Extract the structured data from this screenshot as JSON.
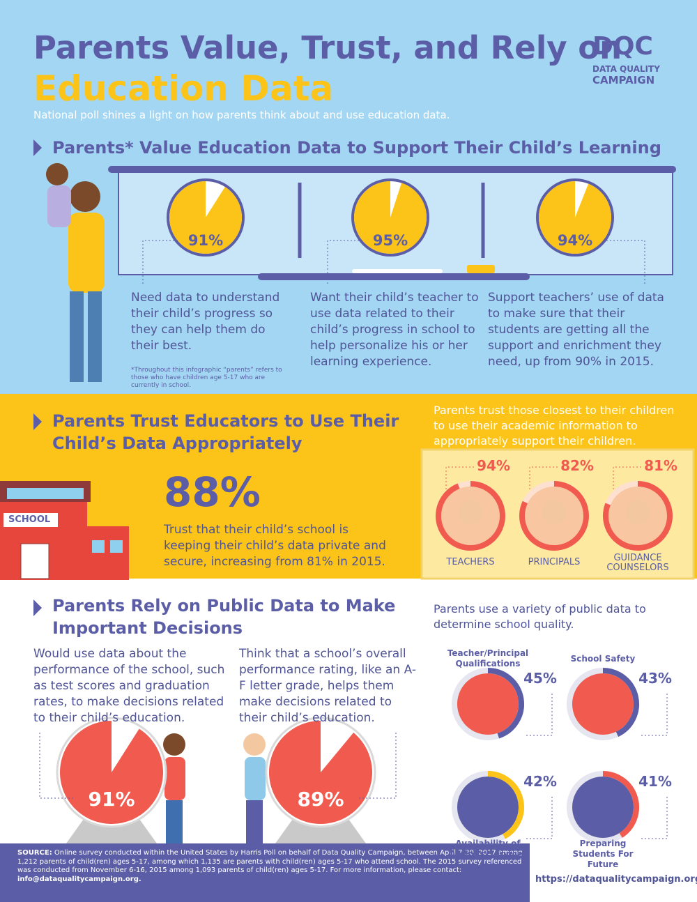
{
  "header": {
    "title_line1": "Parents Value, Trust, and Rely on",
    "title_line2": "Education Data",
    "subtitle": "National poll shines a light on how parents think about and use education data.",
    "logo": "DQC",
    "logo_line1": "DATA QUALITY",
    "logo_line2": "CAMPAIGN"
  },
  "value_section": {
    "heading": "Parents* Value Education Data to Support Their Child’s Learning",
    "stats": [
      {
        "value": 91,
        "label": "91%",
        "text": "Need data to understand their child’s progress so they can help them do their best."
      },
      {
        "value": 95,
        "label": "95%",
        "text": "Want their child’s teacher to use data related to their child’s progress in school to help personalize his or her learning experience."
      },
      {
        "value": 94,
        "label": "94%",
        "text": "Support teachers’ use of data to make sure that their students are getting all the support and enrichment they need, up from 90% in 2015."
      }
    ],
    "footnote": "*Throughout this infographic “parents” refers to those who have children age 5-17 who are currently in school."
  },
  "trust_section": {
    "heading": "Parents Trust Educators to Use Their Child’s Data Appropriately",
    "school_sign": "SCHOOL",
    "stat": "88%",
    "stat_text": "Trust that their child’s school is keeping their child’s data private and secure, increasing from 81% in 2015.",
    "intro": "Parents trust those closest to their children to use their academic information to appropriately support their children.",
    "groups": [
      {
        "value": 94,
        "label": "94%",
        "name": "TEACHERS"
      },
      {
        "value": 82,
        "label": "82%",
        "name": "PRINCIPALS"
      },
      {
        "value": 81,
        "label": "81%",
        "name": "GUIDANCE COUNSELORS"
      }
    ]
  },
  "rely_section": {
    "heading": "Parents Rely on Public Data to Make Important Decisions",
    "stats": [
      {
        "value": 91,
        "label": "91%",
        "text": "Would use data about the performance of the school, such as test scores and graduation rates, to make decisions related to their child’s education."
      },
      {
        "value": 89,
        "label": "89%",
        "text": "Think that a school’s overall performance rating, like an A-F letter grade, helps them make decisions related to their child’s education."
      }
    ],
    "intro": "Parents use a variety of public data to determine school quality.",
    "factors": [
      {
        "name": "Teacher/Principal Qualifications",
        "value": 45,
        "label": "45%"
      },
      {
        "name": "School Safety",
        "value": 43,
        "label": "43%"
      },
      {
        "name": "Availability of Options/Services",
        "value": 42,
        "label": "42%"
      },
      {
        "name": "Preparing Students For Future",
        "value": 41,
        "label": "41%"
      }
    ]
  },
  "footer": {
    "source_label": "SOURCE:",
    "source_text": "Online survey conducted within the United States by Harris Poll on behalf of Data Quality Campaign, between April 7-20, 2017 among 1,212 parents of child(ren) ages 5-17, among which 1,135 are parents with child(ren) ages 5-17 who attend school. The 2015 survey referenced was conducted from November 6-16, 2015 among 1,093 parents of child(ren) ages 5-17. For more information, please contact:",
    "email": "info@dataqualitycampaign.org.",
    "url": "https://dataqualitycampaign.org"
  }
}
